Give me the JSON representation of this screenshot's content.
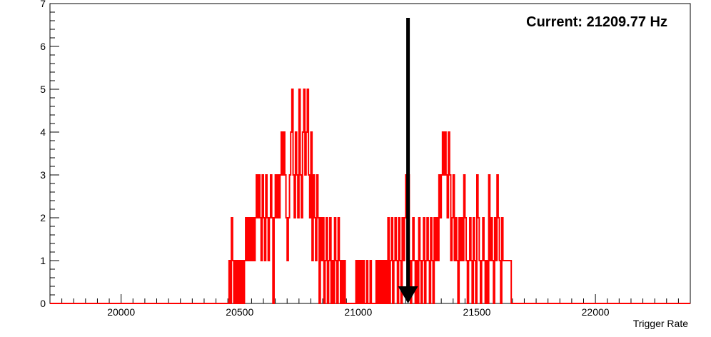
{
  "chart_data": {
    "type": "histogram-step",
    "title": "",
    "xlabel": "Trigger Rate",
    "ylabel": "",
    "xlim": [
      19700,
      22400
    ],
    "ylim": [
      0,
      7
    ],
    "xticks": [
      20000,
      20500,
      21000,
      21500,
      22000
    ],
    "yticks": [
      0,
      1,
      2,
      3,
      4,
      5,
      6,
      7
    ],
    "annotation": "Current: 21209.77 Hz",
    "marker_x": 21209.77,
    "line_color": "#ff0000",
    "marker_color": "#000000",
    "grid": false,
    "bin_width": 5,
    "bins": [
      [
        20455,
        1
      ],
      [
        20460,
        0
      ],
      [
        20465,
        2
      ],
      [
        20470,
        1
      ],
      [
        20475,
        0
      ],
      [
        20480,
        1
      ],
      [
        20485,
        0
      ],
      [
        20490,
        1
      ],
      [
        20495,
        0
      ],
      [
        20500,
        1
      ],
      [
        20505,
        0
      ],
      [
        20510,
        1
      ],
      [
        20515,
        0
      ],
      [
        20520,
        1
      ],
      [
        20525,
        2
      ],
      [
        20530,
        1
      ],
      [
        20535,
        2
      ],
      [
        20540,
        1
      ],
      [
        20545,
        2
      ],
      [
        20550,
        1
      ],
      [
        20555,
        2
      ],
      [
        20560,
        1
      ],
      [
        20565,
        2
      ],
      [
        20570,
        3
      ],
      [
        20575,
        2
      ],
      [
        20580,
        3
      ],
      [
        20585,
        2
      ],
      [
        20590,
        1
      ],
      [
        20595,
        3
      ],
      [
        20600,
        2
      ],
      [
        20605,
        1
      ],
      [
        20610,
        3
      ],
      [
        20615,
        2
      ],
      [
        20620,
        1
      ],
      [
        20625,
        2
      ],
      [
        20630,
        3
      ],
      [
        20635,
        2
      ],
      [
        20640,
        0
      ],
      [
        20645,
        2
      ],
      [
        20650,
        3
      ],
      [
        20655,
        2
      ],
      [
        20660,
        3
      ],
      [
        20665,
        2
      ],
      [
        20670,
        3
      ],
      [
        20675,
        4
      ],
      [
        20680,
        3
      ],
      [
        20685,
        4
      ],
      [
        20690,
        3
      ],
      [
        20695,
        2
      ],
      [
        20700,
        1
      ],
      [
        20705,
        2
      ],
      [
        20710,
        3
      ],
      [
        20715,
        4
      ],
      [
        20720,
        5
      ],
      [
        20725,
        3
      ],
      [
        20730,
        2
      ],
      [
        20735,
        4
      ],
      [
        20740,
        3
      ],
      [
        20745,
        2
      ],
      [
        20750,
        5
      ],
      [
        20755,
        3
      ],
      [
        20760,
        2
      ],
      [
        20765,
        4
      ],
      [
        20770,
        5
      ],
      [
        20775,
        3
      ],
      [
        20780,
        4
      ],
      [
        20785,
        5
      ],
      [
        20790,
        3
      ],
      [
        20795,
        2
      ],
      [
        20800,
        4
      ],
      [
        20805,
        1
      ],
      [
        20810,
        3
      ],
      [
        20815,
        2
      ],
      [
        20820,
        1
      ],
      [
        20825,
        3
      ],
      [
        20830,
        2
      ],
      [
        20835,
        0
      ],
      [
        20840,
        2
      ],
      [
        20845,
        1
      ],
      [
        20850,
        2
      ],
      [
        20855,
        0
      ],
      [
        20860,
        1
      ],
      [
        20865,
        2
      ],
      [
        20870,
        0
      ],
      [
        20875,
        1
      ],
      [
        20880,
        2
      ],
      [
        20885,
        0
      ],
      [
        20890,
        1
      ],
      [
        20895,
        0
      ],
      [
        20900,
        2
      ],
      [
        20905,
        1
      ],
      [
        20910,
        0
      ],
      [
        20915,
        2
      ],
      [
        20920,
        1
      ],
      [
        20925,
        0
      ],
      [
        20930,
        1
      ],
      [
        20935,
        0
      ],
      [
        20940,
        1
      ],
      [
        20945,
        0
      ],
      [
        20950,
        0
      ],
      [
        20955,
        0
      ],
      [
        20960,
        0
      ],
      [
        20965,
        0
      ],
      [
        20970,
        0
      ],
      [
        20975,
        0
      ],
      [
        20980,
        0
      ],
      [
        20985,
        0
      ],
      [
        20990,
        1
      ],
      [
        20995,
        0
      ],
      [
        21000,
        1
      ],
      [
        21005,
        0
      ],
      [
        21010,
        1
      ],
      [
        21015,
        0
      ],
      [
        21020,
        1
      ],
      [
        21025,
        0
      ],
      [
        21030,
        0
      ],
      [
        21035,
        1
      ],
      [
        21040,
        0
      ],
      [
        21045,
        0
      ],
      [
        21050,
        1
      ],
      [
        21055,
        0
      ],
      [
        21060,
        0
      ],
      [
        21065,
        0
      ],
      [
        21070,
        0
      ],
      [
        21075,
        1
      ],
      [
        21080,
        0
      ],
      [
        21085,
        1
      ],
      [
        21090,
        0
      ],
      [
        21095,
        1
      ],
      [
        21100,
        0
      ],
      [
        21105,
        1
      ],
      [
        21110,
        0
      ],
      [
        21115,
        1
      ],
      [
        21120,
        0
      ],
      [
        21125,
        2
      ],
      [
        21130,
        0
      ],
      [
        21135,
        1
      ],
      [
        21140,
        2
      ],
      [
        21145,
        0
      ],
      [
        21150,
        1
      ],
      [
        21155,
        2
      ],
      [
        21160,
        1
      ],
      [
        21165,
        0
      ],
      [
        21170,
        2
      ],
      [
        21175,
        1
      ],
      [
        21180,
        0
      ],
      [
        21185,
        2
      ],
      [
        21190,
        1
      ],
      [
        21195,
        2
      ],
      [
        21200,
        3
      ],
      [
        21205,
        2
      ],
      [
        21210,
        3
      ],
      [
        21215,
        1
      ],
      [
        21220,
        0
      ],
      [
        21225,
        1
      ],
      [
        21230,
        2
      ],
      [
        21235,
        1
      ],
      [
        21240,
        0
      ],
      [
        21245,
        1
      ],
      [
        21250,
        0
      ],
      [
        21255,
        2
      ],
      [
        21260,
        1
      ],
      [
        21265,
        0
      ],
      [
        21270,
        1
      ],
      [
        21275,
        2
      ],
      [
        21280,
        0
      ],
      [
        21285,
        1
      ],
      [
        21290,
        2
      ],
      [
        21295,
        1
      ],
      [
        21300,
        0
      ],
      [
        21305,
        2
      ],
      [
        21310,
        1
      ],
      [
        21315,
        0
      ],
      [
        21320,
        2
      ],
      [
        21325,
        1
      ],
      [
        21330,
        2
      ],
      [
        21335,
        1
      ],
      [
        21340,
        3
      ],
      [
        21345,
        2
      ],
      [
        21350,
        3
      ],
      [
        21355,
        4
      ],
      [
        21360,
        3
      ],
      [
        21365,
        4
      ],
      [
        21370,
        3
      ],
      [
        21375,
        2
      ],
      [
        21380,
        4
      ],
      [
        21385,
        3
      ],
      [
        21390,
        1
      ],
      [
        21395,
        2
      ],
      [
        21400,
        3
      ],
      [
        21405,
        1
      ],
      [
        21410,
        2
      ],
      [
        21415,
        1
      ],
      [
        21420,
        0
      ],
      [
        21425,
        2
      ],
      [
        21430,
        1
      ],
      [
        21435,
        2
      ],
      [
        21440,
        1
      ],
      [
        21445,
        3
      ],
      [
        21450,
        2
      ],
      [
        21455,
        1
      ],
      [
        21460,
        0
      ],
      [
        21465,
        1
      ],
      [
        21470,
        2
      ],
      [
        21475,
        1
      ],
      [
        21480,
        0
      ],
      [
        21485,
        2
      ],
      [
        21490,
        1
      ],
      [
        21495,
        0
      ],
      [
        21500,
        3
      ],
      [
        21505,
        2
      ],
      [
        21510,
        1
      ],
      [
        21515,
        0
      ],
      [
        21520,
        1
      ],
      [
        21525,
        2
      ],
      [
        21530,
        1
      ],
      [
        21535,
        0
      ],
      [
        21540,
        1
      ],
      [
        21545,
        0
      ],
      [
        21550,
        3
      ],
      [
        21555,
        1
      ],
      [
        21560,
        2
      ],
      [
        21565,
        1
      ],
      [
        21570,
        0
      ],
      [
        21575,
        2
      ],
      [
        21580,
        1
      ],
      [
        21585,
        3
      ],
      [
        21590,
        2
      ],
      [
        21595,
        1
      ],
      [
        21600,
        0
      ],
      [
        21605,
        2
      ],
      [
        21610,
        1
      ],
      [
        21615,
        1
      ],
      [
        21620,
        1
      ],
      [
        21625,
        1
      ],
      [
        21630,
        1
      ],
      [
        21635,
        1
      ],
      [
        21640,
        1
      ]
    ]
  }
}
